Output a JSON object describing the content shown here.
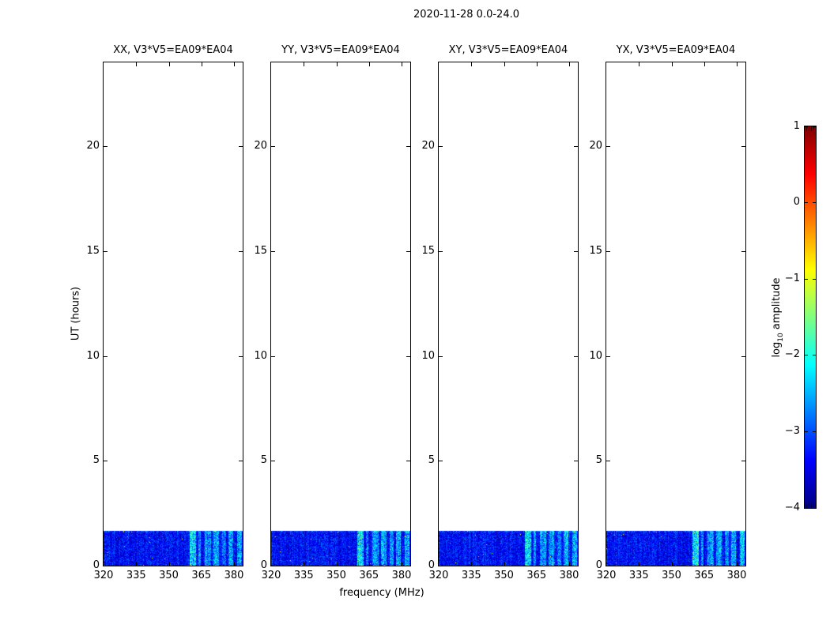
{
  "figure": {
    "title": "2020-11-28 0.0-24.0",
    "xlabel": "frequency (MHz)",
    "ylabel": "UT (hours)"
  },
  "colorbar": {
    "label_prefix": "log",
    "label_sub": "10",
    "label_suffix": " amplitude",
    "tick_labels": [
      "1",
      "0",
      "−1",
      "−2",
      "−3",
      "−4"
    ],
    "tick_values": [
      1,
      0,
      -1,
      -2,
      -3,
      -4
    ],
    "min": -4,
    "max": 1,
    "colormap": "jet"
  },
  "chart_data": {
    "type": "heatmap",
    "title": "2020-11-28 0.0-24.0",
    "xlabel": "frequency (MHz)",
    "ylabel": "UT (hours)",
    "x_range": [
      320,
      384
    ],
    "y_range": [
      0,
      24
    ],
    "x_ticks": [
      320,
      335,
      350,
      365,
      380
    ],
    "y_ticks": [
      0,
      5,
      10,
      15,
      20
    ],
    "grid": false,
    "colorbar": {
      "label": "log10 amplitude",
      "min": -4,
      "max": 1,
      "ticks": [
        1,
        0,
        -1,
        -2,
        -3,
        -4
      ],
      "colormap": "jet",
      "position": "right"
    },
    "panels": [
      {
        "title": "XX, V3*V5=EA09*EA04",
        "seed": 101
      },
      {
        "title": "YY, V3*V5=EA09*EA04",
        "seed": 202
      },
      {
        "title": "XY, V3*V5=EA09*EA04",
        "seed": 303
      },
      {
        "title": "YX, V3*V5=EA09*EA04",
        "seed": 404
      }
    ],
    "data_band": {
      "description": "observed emission only between UT 0 and ~1.7 h; rest of the 24 h span is blank",
      "hours_start": 0,
      "hours_end": 1.65,
      "base_amplitude_log10": -3.35,
      "noise_spread": 0.9,
      "speckle_rate": 0.002,
      "rfi_stripes_mhz": [
        [
          359.5,
          362.5,
          1.25
        ],
        [
          363.5,
          364.8,
          0.75
        ],
        [
          366.5,
          369.5,
          0.8
        ],
        [
          370.5,
          373.0,
          0.85
        ],
        [
          374.5,
          376.5,
          0.65
        ],
        [
          377.5,
          379.8,
          0.95
        ],
        [
          381.5,
          383.8,
          0.95
        ]
      ]
    }
  }
}
